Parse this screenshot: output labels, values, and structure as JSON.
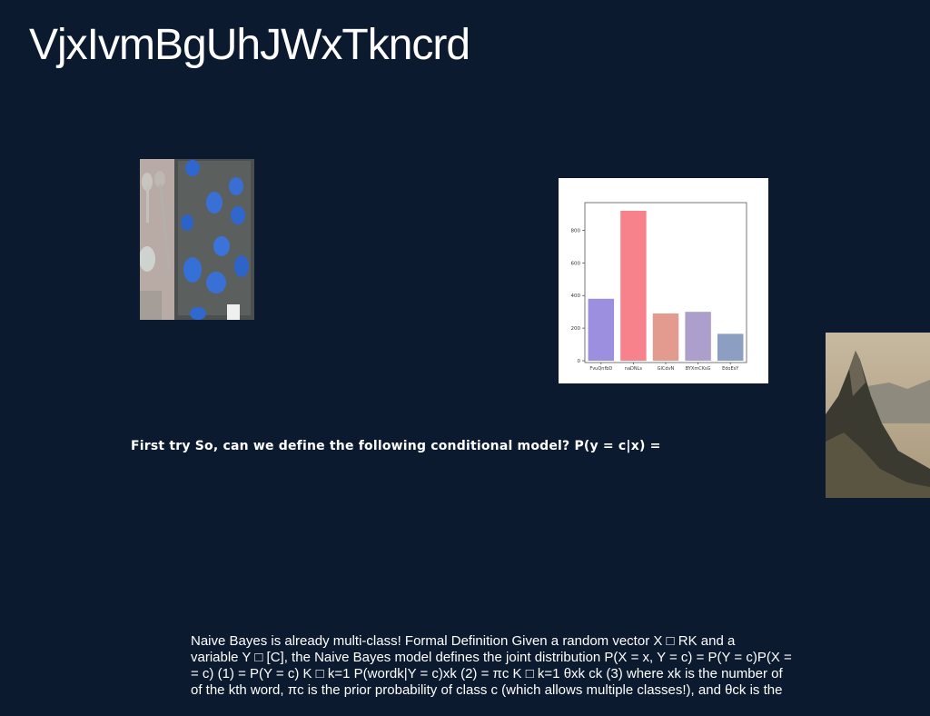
{
  "slide": {
    "title": "VjxIvmBgUhJWxTkncrd",
    "question": "First try So, can we define the following conditional model? P(y = c|x) =",
    "body_lines": [
      "Naive Bayes is already multi-class! Formal Definition Given a random vector X □ RK and a",
      "variable Y □ [C], the Naive Bayes model defines the joint distribution P(X = x, Y = c) = P(Y = c)P(X =",
      "= c) (1) = P(Y = c) K □ k=1 P(wordk|Y = c)xk (2) = πc K □ k=1 θxk ck (3) where xk is the number of",
      "of the kth word, πc is the prior probability of class c (which allows multiple classes!), and θck is the"
    ]
  },
  "chart_data": {
    "type": "bar",
    "categories": [
      "FvuQnfbD",
      "naDNLs",
      "GlCdvN",
      "BYXmCKsG",
      "EdoEsY"
    ],
    "values": [
      380,
      920,
      290,
      300,
      165
    ],
    "colors": [
      "#9c8fe0",
      "#f8828c",
      "#e39b8f",
      "#ac9fcb",
      "#8c9fc3"
    ],
    "yticks": [
      0,
      200,
      400,
      600,
      800
    ],
    "ylim": [
      0,
      970
    ],
    "grid": false
  }
}
